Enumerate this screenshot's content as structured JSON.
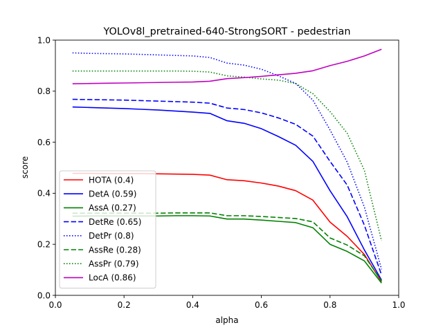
{
  "chart_data": {
    "type": "line",
    "title": "YOLOv8l_pretrained-640-StrongSORT - pedestrian",
    "xlabel": "alpha",
    "ylabel": "score",
    "xlim": [
      0.0,
      1.0
    ],
    "ylim": [
      0.0,
      1.0
    ],
    "xticks": [
      "0.0",
      "0.2",
      "0.4",
      "0.6",
      "0.8",
      "1.0"
    ],
    "yticks": [
      "0.0",
      "0.2",
      "0.4",
      "0.6",
      "0.8",
      "1.0"
    ],
    "grid": false,
    "legend_position": "lower-left",
    "x": [
      0.05,
      0.1,
      0.15,
      0.2,
      0.25,
      0.3,
      0.35,
      0.4,
      0.45,
      0.5,
      0.55,
      0.6,
      0.65,
      0.7,
      0.75,
      0.8,
      0.85,
      0.9,
      0.95
    ],
    "series": [
      {
        "name": "HOTA (0.4)",
        "color": "#ff0000",
        "style": "solid",
        "values": [
          0.478,
          0.478,
          0.477,
          0.477,
          0.477,
          0.476,
          0.475,
          0.474,
          0.471,
          0.453,
          0.449,
          0.44,
          0.428,
          0.41,
          0.373,
          0.287,
          0.231,
          0.16,
          0.053
        ]
      },
      {
        "name": "DetA (0.59)",
        "color": "#0000ff",
        "style": "solid",
        "values": [
          0.738,
          0.736,
          0.734,
          0.732,
          0.729,
          0.726,
          0.722,
          0.718,
          0.713,
          0.684,
          0.674,
          0.653,
          0.622,
          0.588,
          0.525,
          0.41,
          0.308,
          0.178,
          0.06
        ]
      },
      {
        "name": "AssA (0.27)",
        "color": "#008000",
        "style": "solid",
        "values": [
          0.31,
          0.311,
          0.311,
          0.311,
          0.311,
          0.311,
          0.312,
          0.312,
          0.311,
          0.299,
          0.299,
          0.295,
          0.29,
          0.285,
          0.265,
          0.2,
          0.172,
          0.135,
          0.048
        ]
      },
      {
        "name": "DetRe (0.65)",
        "color": "#0000ff",
        "style": "dashed",
        "values": [
          0.768,
          0.767,
          0.766,
          0.765,
          0.763,
          0.761,
          0.759,
          0.757,
          0.753,
          0.734,
          0.728,
          0.715,
          0.695,
          0.67,
          0.624,
          0.525,
          0.432,
          0.275,
          0.08
        ]
      },
      {
        "name": "DetPr (0.8)",
        "color": "#0000ff",
        "style": "dotted",
        "values": [
          0.95,
          0.948,
          0.947,
          0.946,
          0.944,
          0.942,
          0.94,
          0.938,
          0.932,
          0.91,
          0.902,
          0.886,
          0.86,
          0.83,
          0.765,
          0.648,
          0.522,
          0.346,
          0.102
        ]
      },
      {
        "name": "AssRe (0.28)",
        "color": "#008000",
        "style": "dashed",
        "values": [
          0.322,
          0.322,
          0.322,
          0.322,
          0.322,
          0.322,
          0.323,
          0.323,
          0.323,
          0.312,
          0.312,
          0.309,
          0.305,
          0.301,
          0.288,
          0.225,
          0.197,
          0.155,
          0.056
        ]
      },
      {
        "name": "AssPr (0.79)",
        "color": "#008000",
        "style": "dotted",
        "values": [
          0.879,
          0.879,
          0.879,
          0.879,
          0.879,
          0.879,
          0.879,
          0.878,
          0.875,
          0.86,
          0.855,
          0.848,
          0.843,
          0.83,
          0.79,
          0.72,
          0.635,
          0.49,
          0.214
        ]
      },
      {
        "name": "LocA (0.86)",
        "color": "#bf00bf",
        "style": "solid",
        "values": [
          0.829,
          0.83,
          0.831,
          0.832,
          0.833,
          0.834,
          0.835,
          0.836,
          0.839,
          0.849,
          0.853,
          0.858,
          0.864,
          0.87,
          0.88,
          0.9,
          0.917,
          0.938,
          0.964
        ]
      }
    ]
  }
}
